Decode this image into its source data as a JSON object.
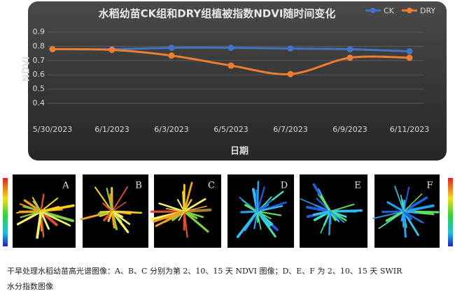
{
  "chart_data": {
    "type": "line",
    "title": "水稻幼苗CK组和DRY组植被指数NDVI随时间变化",
    "x_label": "日期",
    "y_label": "NDVI",
    "categories": [
      "5/30/2023",
      "6/1/2023",
      "6/3/2023",
      "6/5/2023",
      "6/7/2023",
      "6/9/2023",
      "6/11/2023"
    ],
    "series": [
      {
        "name": "CK",
        "color": "#4472c4",
        "values": [
          0.78,
          0.78,
          0.79,
          0.79,
          0.785,
          0.78,
          0.765
        ]
      },
      {
        "name": "DRY",
        "color": "#ed7d31",
        "values": [
          0.78,
          0.775,
          0.735,
          0.665,
          0.605,
          0.72,
          0.72
        ]
      }
    ],
    "ylim": [
      0.4,
      0.9
    ],
    "yticks": [
      0.4,
      0.5,
      0.6,
      0.7,
      0.8,
      0.9
    ],
    "grid": true,
    "legend": "top-right",
    "smooth": true
  },
  "panels": {
    "labels": [
      "A",
      "B",
      "C",
      "D",
      "E",
      "F"
    ]
  },
  "caption": [
    "干旱处理水稻幼苗高光谱图像：A、B、C 分别为第 2、10、15 天 NDVI 图像；D、E、F 为 2、10、15 天 SWIR",
    "水分指数图像"
  ]
}
